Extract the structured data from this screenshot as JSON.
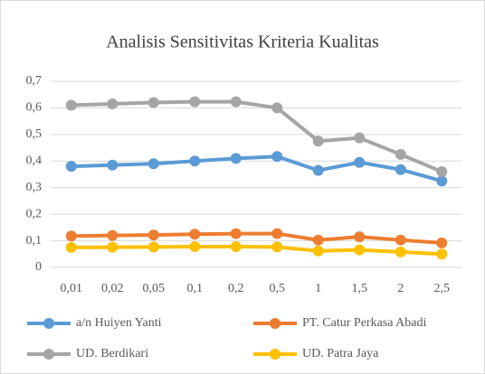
{
  "chart_data": {
    "type": "line",
    "title": "Analisis Sensitivitas Kriteria Kualitas",
    "categories": [
      "0,01",
      "0,02",
      "0,05",
      "0,1",
      "0,2",
      "0,5",
      "1",
      "1,5",
      "2",
      "2,5"
    ],
    "series": [
      {
        "name": "a/n Huiyen Yanti",
        "color": "#5b9bd5",
        "values": [
          0.38,
          0.385,
          0.39,
          0.4,
          0.41,
          0.417,
          0.365,
          0.395,
          0.368,
          0.325
        ]
      },
      {
        "name": "PT. Catur Perkasa Abadi",
        "color": "#ed7d31",
        "values": [
          0.118,
          0.12,
          0.122,
          0.125,
          0.127,
          0.127,
          0.103,
          0.115,
          0.103,
          0.092
        ]
      },
      {
        "name": "UD. Berdikari",
        "color": "#a5a5a5",
        "values": [
          0.61,
          0.615,
          0.62,
          0.623,
          0.623,
          0.6,
          0.475,
          0.487,
          0.425,
          0.36
        ]
      },
      {
        "name": "UD. Patra Jaya",
        "color": "#ffc000",
        "values": [
          0.075,
          0.076,
          0.077,
          0.078,
          0.078,
          0.077,
          0.062,
          0.066,
          0.058,
          0.05
        ]
      }
    ],
    "ylim": [
      0,
      0.7
    ],
    "yticks": [
      0,
      {
        "value": 0.1,
        "label": "0,1"
      },
      {
        "value": 0.2,
        "label": "0,2"
      },
      {
        "value": 0.3,
        "label": "0,3"
      },
      {
        "value": 0.4,
        "label": "0,4"
      },
      {
        "value": 0.5,
        "label": "0,5"
      },
      {
        "value": 0.6,
        "label": "0,6"
      },
      {
        "value": 0.7,
        "label": "0,7"
      }
    ],
    "grid": true,
    "legend": "bottom"
  }
}
